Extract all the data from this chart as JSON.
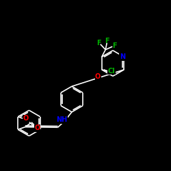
{
  "background_color": "#000000",
  "bond_color": "#ffffff",
  "atom_colors": {
    "N": "#0000ff",
    "O": "#ff0000",
    "Cl": "#00b000",
    "F": "#00b000",
    "C": "#ffffff"
  },
  "figsize": [
    2.5,
    2.5
  ],
  "dpi": 100,
  "lw": 1.2,
  "ring_r": 0.075,
  "font_size": 7
}
